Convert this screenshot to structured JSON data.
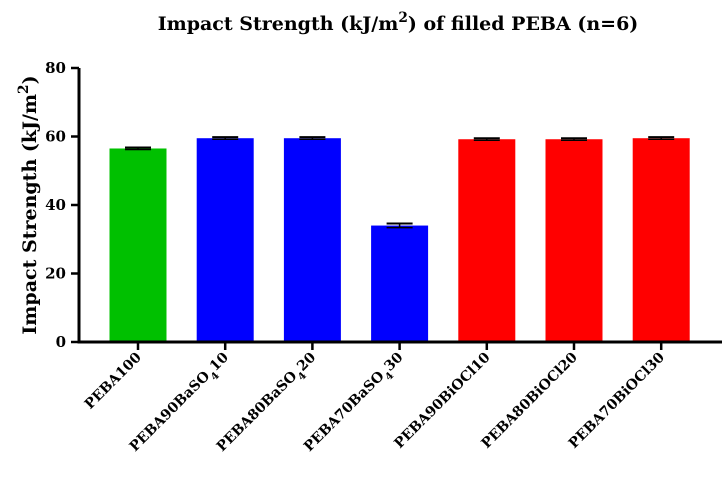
{
  "chart_data": {
    "type": "bar",
    "title": "Impact Strength (kJ/m²) of filled PEBA (n=6)",
    "title_parts": [
      "Impact Strength (kJ/m",
      "2",
      ") of filled PEBA (n=6)"
    ],
    "ylabel": "Impact Strength (kJ/m²)",
    "ylabel_parts": [
      "Impact Strength (kJ/m",
      "2",
      ")"
    ],
    "xlabel": "",
    "ylim": [
      0,
      80
    ],
    "yticks": [
      "0",
      "20",
      "40",
      "60",
      "80"
    ],
    "categories": [
      "PEBA100",
      "PEBA90BaSO₄10",
      "PEBA80BaSO₄20",
      "PEBA70BaSO₄30",
      "PEBA90BiOCl10",
      "PEBA80BiOCl20",
      "PEBA70BiOCl30"
    ],
    "category_parts": [
      [
        "PEBA100"
      ],
      [
        "PEBA90BaSO",
        "4",
        "10"
      ],
      [
        "PEBA80BaSO",
        "4",
        "20"
      ],
      [
        "PEBA70BaSO",
        "4",
        "30"
      ],
      [
        "PEBA90BiOCl10"
      ],
      [
        "PEBA80BiOCl20"
      ],
      [
        "PEBA70BiOCl30"
      ]
    ],
    "values": [
      56.5,
      59.5,
      59.5,
      34.0,
      59.2,
      59.2,
      59.5
    ],
    "errors": [
      0.3,
      0.3,
      0.3,
      0.6,
      0.3,
      0.3,
      0.3
    ],
    "colors": [
      "#00c000",
      "#0000ff",
      "#0000ff",
      "#0000ff",
      "#ff0000",
      "#ff0000",
      "#ff0000"
    ],
    "grid": false
  }
}
